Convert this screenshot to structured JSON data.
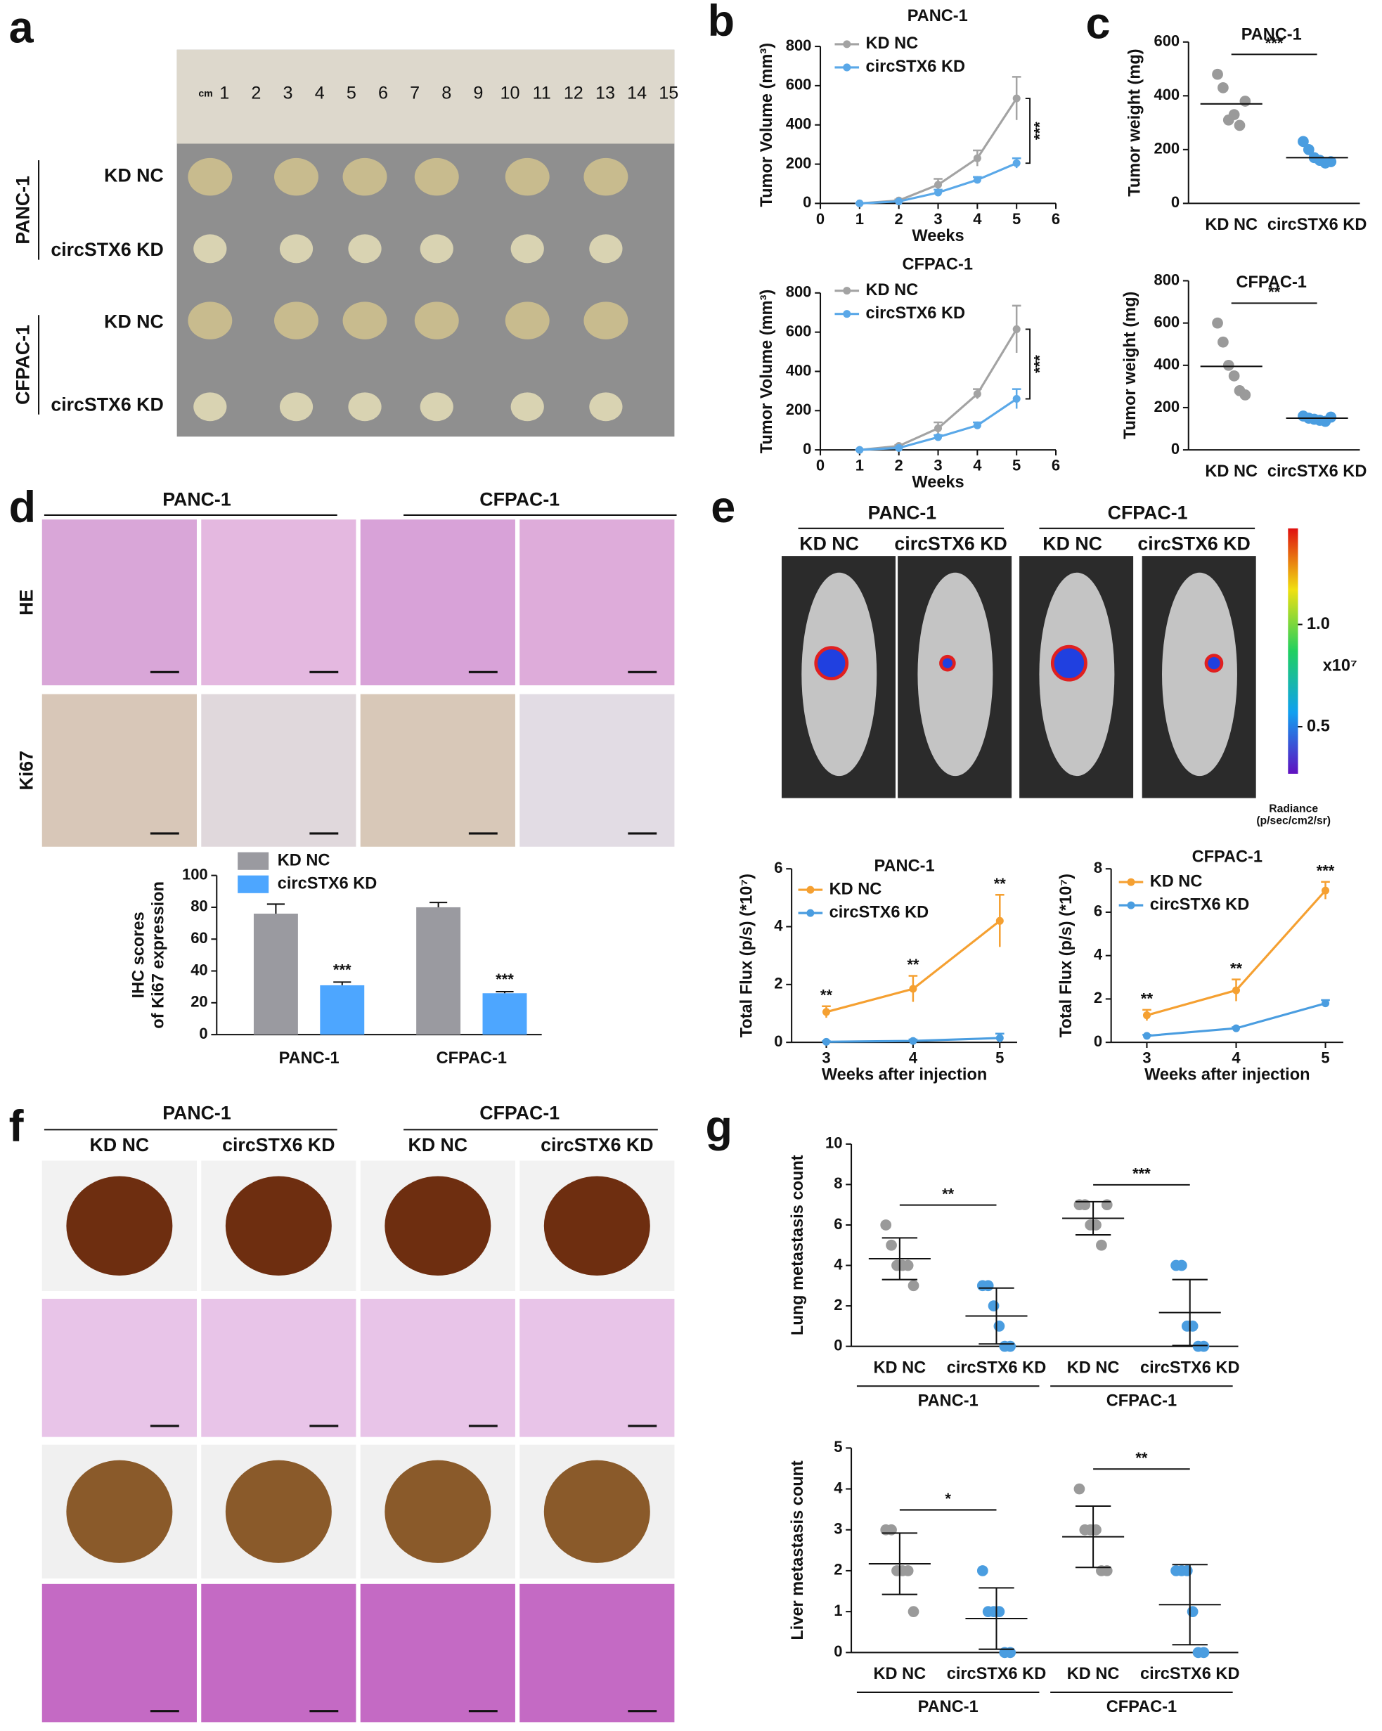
{
  "panel_letters": [
    "a",
    "b",
    "c",
    "d",
    "e",
    "f",
    "g"
  ],
  "photos": {
    "a": {
      "ruler_unit": "cm",
      "ruler_marks": [
        1,
        2,
        3,
        4,
        5,
        6,
        7,
        8,
        9,
        10,
        11,
        12,
        13,
        14,
        15
      ],
      "groups": [
        "PANC-1",
        "CFPAC-1"
      ],
      "rows": [
        "KD NC",
        "circSTX6 KD",
        "KD NC",
        "circSTX6 KD"
      ]
    },
    "d": {
      "groups": [
        "PANC-1",
        "CFPAC-1"
      ],
      "columns": [
        "KD NC",
        "circSTX6 KD",
        "KD NC",
        "circSTX6 KD"
      ],
      "rows": [
        "HE",
        "Ki67"
      ]
    },
    "e": {
      "groups": [
        "PANC-1",
        "CFPAC-1"
      ],
      "columns": [
        "KD NC",
        "circSTX6 KD",
        "KD NC",
        "circSTX6 KD"
      ],
      "colorbar_lim": [
        0.27,
        1.47
      ],
      "colorbar_ticks": [
        {
          "value": 1,
          "label": "1.0"
        },
        {
          "value": 0.5,
          "label": "0.5"
        }
      ],
      "colorbar_unit": "x10⁷",
      "colorbar_title": [
        "Radiance",
        "(p/sec/cm2/sr)"
      ]
    },
    "f": {
      "groups": [
        "PANC-1",
        "CFPAC-1"
      ],
      "columns": [
        "KD NC",
        "circSTX6 KD",
        "KD NC",
        "circSTX6 KD"
      ]
    }
  },
  "chart_data": [
    {
      "type": "line",
      "title": "PANC-1",
      "xlabel": "Weeks",
      "ylabel": "Tumor Volume (mm³)",
      "x": [
        1,
        2,
        3,
        4,
        5
      ],
      "xlim": [
        0,
        6
      ],
      "xticks": [
        0,
        1,
        2,
        3,
        4,
        5,
        6
      ],
      "ylim": [
        0,
        800
      ],
      "yticks": [
        0,
        200,
        400,
        600,
        800
      ],
      "series": [
        {
          "name": "KD NC",
          "color": "#a3a3a3",
          "values": [
            0,
            15,
            95,
            230,
            535
          ],
          "errors": [
            0,
            5,
            30,
            40,
            110
          ]
        },
        {
          "name": "circSTX6 KD",
          "color": "#5aa8e8",
          "values": [
            0,
            10,
            55,
            120,
            205
          ],
          "errors": [
            0,
            3,
            15,
            15,
            25
          ]
        }
      ],
      "bracket_label": "***"
    },
    {
      "type": "line",
      "title": "CFPAC-1",
      "xlabel": "Weeks",
      "ylabel": "Tumor Volume (mm³)",
      "x": [
        1,
        2,
        3,
        4,
        5
      ],
      "xlim": [
        0,
        6
      ],
      "xticks": [
        0,
        1,
        2,
        3,
        4,
        5,
        6
      ],
      "ylim": [
        0,
        800
      ],
      "yticks": [
        0,
        200,
        400,
        600,
        800
      ],
      "series": [
        {
          "name": "KD NC",
          "color": "#a3a3a3",
          "values": [
            0,
            20,
            110,
            285,
            615
          ],
          "errors": [
            0,
            5,
            30,
            25,
            120
          ]
        },
        {
          "name": "circSTX6 KD",
          "color": "#5aa8e8",
          "values": [
            0,
            10,
            65,
            125,
            260
          ],
          "errors": [
            0,
            3,
            10,
            15,
            50
          ]
        }
      ],
      "bracket_label": "***"
    },
    {
      "type": "dot",
      "title": "PANC-1",
      "ylabel": "Tumor weight (mg)",
      "ylim": [
        0,
        600
      ],
      "yticks": [
        0,
        200,
        400,
        600
      ],
      "categories": [
        "KD NC",
        "circSTX6 KD"
      ],
      "colors": [
        "#9a9a9a",
        "#4a9de0"
      ],
      "points": [
        [
          480,
          430,
          310,
          330,
          290,
          380
        ],
        [
          230,
          200,
          170,
          160,
          150,
          155
        ]
      ],
      "means": [
        370,
        170
      ],
      "comparisons": [
        "***"
      ]
    },
    {
      "type": "dot",
      "title": "CFPAC-1",
      "ylabel": "Tumor weight (mg)",
      "ylim": [
        0,
        800
      ],
      "yticks": [
        0,
        200,
        400,
        600,
        800
      ],
      "categories": [
        "KD NC",
        "circSTX6 KD"
      ],
      "colors": [
        "#9a9a9a",
        "#4a9de0"
      ],
      "points": [
        [
          600,
          510,
          400,
          350,
          280,
          260
        ],
        [
          160,
          150,
          145,
          140,
          135,
          155
        ]
      ],
      "means": [
        395,
        150
      ],
      "comparisons": [
        "**"
      ]
    },
    {
      "type": "bar",
      "ylabel": [
        "IHC scores",
        "of Ki67 expression"
      ],
      "ylim": [
        0,
        100
      ],
      "yticks": [
        0,
        20,
        40,
        60,
        80,
        100
      ],
      "categories": [
        "PANC-1",
        "CFPAC-1"
      ],
      "series": [
        {
          "name": "KD NC",
          "color": "#9a9aa0",
          "values": [
            76,
            80
          ],
          "errors": [
            6,
            3
          ]
        },
        {
          "name": "circSTX6 KD",
          "color": "#4da6ff",
          "values": [
            31,
            26
          ],
          "errors": [
            2,
            1
          ],
          "significance": [
            "***",
            "***"
          ]
        }
      ]
    },
    {
      "type": "line",
      "title": "PANC-1",
      "xlabel": "Weeks after injection",
      "ylabel": "Total Flux (p/s) (*10⁷)",
      "x": [
        3,
        4,
        5
      ],
      "xlim": [
        2.6,
        5.2
      ],
      "xticks": [
        3,
        4,
        5
      ],
      "ylim": [
        0,
        6
      ],
      "yticks": [
        0,
        2,
        4,
        6
      ],
      "series": [
        {
          "name": "KD NC",
          "color": "#f5a031",
          "values": [
            1.05,
            1.85,
            4.2
          ],
          "errors": [
            0.2,
            0.45,
            0.9
          ]
        },
        {
          "name": "circSTX6 KD",
          "color": "#4a9de0",
          "values": [
            0.02,
            0.05,
            0.15
          ],
          "errors": [
            0.02,
            0.05,
            0.15
          ]
        }
      ],
      "point_labels": [
        "**",
        "**",
        "**"
      ]
    },
    {
      "type": "line",
      "title": "CFPAC-1",
      "xlabel": "Weeks after injection",
      "ylabel": "Total Flux (p/s) (*10⁷)",
      "x": [
        3,
        4,
        5
      ],
      "xlim": [
        2.6,
        5.2
      ],
      "xticks": [
        3,
        4,
        5
      ],
      "ylim": [
        0,
        8
      ],
      "yticks": [
        0,
        2,
        4,
        6,
        8
      ],
      "series": [
        {
          "name": "KD NC",
          "color": "#f5a031",
          "values": [
            1.25,
            2.4,
            7.0
          ],
          "errors": [
            0.25,
            0.5,
            0.4
          ]
        },
        {
          "name": "circSTX6 KD",
          "color": "#4a9de0",
          "values": [
            0.3,
            0.65,
            1.8
          ],
          "errors": [
            0.05,
            0.05,
            0.15
          ]
        }
      ],
      "point_labels": [
        "**",
        "**",
        "***"
      ]
    },
    {
      "type": "dot",
      "ylabel": "Lung metastasis count",
      "ylim": [
        0,
        10
      ],
      "yticks": [
        0,
        2,
        4,
        6,
        8,
        10
      ],
      "categories": [
        "KD NC",
        "circSTX6 KD",
        "KD NC",
        "circSTX6 KD"
      ],
      "groups": [
        "PANC-1",
        "CFPAC-1"
      ],
      "colors": [
        "#9a9a9a",
        "#4a9de0",
        "#9a9a9a",
        "#4a9de0"
      ],
      "points": [
        [
          6,
          5,
          4,
          4,
          4,
          3
        ],
        [
          3,
          3,
          2,
          1,
          0,
          0
        ],
        [
          7,
          7,
          6,
          6,
          5,
          7
        ],
        [
          4,
          4,
          1,
          1,
          0,
          0
        ]
      ],
      "means": [
        4.33,
        1.5,
        6.33,
        1.67
      ],
      "sds": [
        1.03,
        1.38,
        0.82,
        1.63
      ],
      "comparisons": [
        "**",
        "***"
      ]
    },
    {
      "type": "dot",
      "ylabel": "Liver metastasis count",
      "ylim": [
        0,
        5
      ],
      "yticks": [
        0,
        1,
        2,
        3,
        4,
        5
      ],
      "categories": [
        "KD NC",
        "circSTX6 KD",
        "KD NC",
        "circSTX6 KD"
      ],
      "groups": [
        "PANC-1",
        "CFPAC-1"
      ],
      "colors": [
        "#9a9a9a",
        "#4a9de0",
        "#9a9a9a",
        "#4a9de0"
      ],
      "points": [
        [
          3,
          3,
          2,
          2,
          2,
          1
        ],
        [
          2,
          1,
          1,
          1,
          0,
          0
        ],
        [
          4,
          3,
          3,
          3,
          2,
          2
        ],
        [
          2,
          2,
          2,
          1,
          0,
          0
        ]
      ],
      "means": [
        2.17,
        0.83,
        2.83,
        1.17
      ],
      "sds": [
        0.75,
        0.75,
        0.75,
        0.98
      ],
      "comparisons": [
        "*",
        "**"
      ]
    }
  ]
}
